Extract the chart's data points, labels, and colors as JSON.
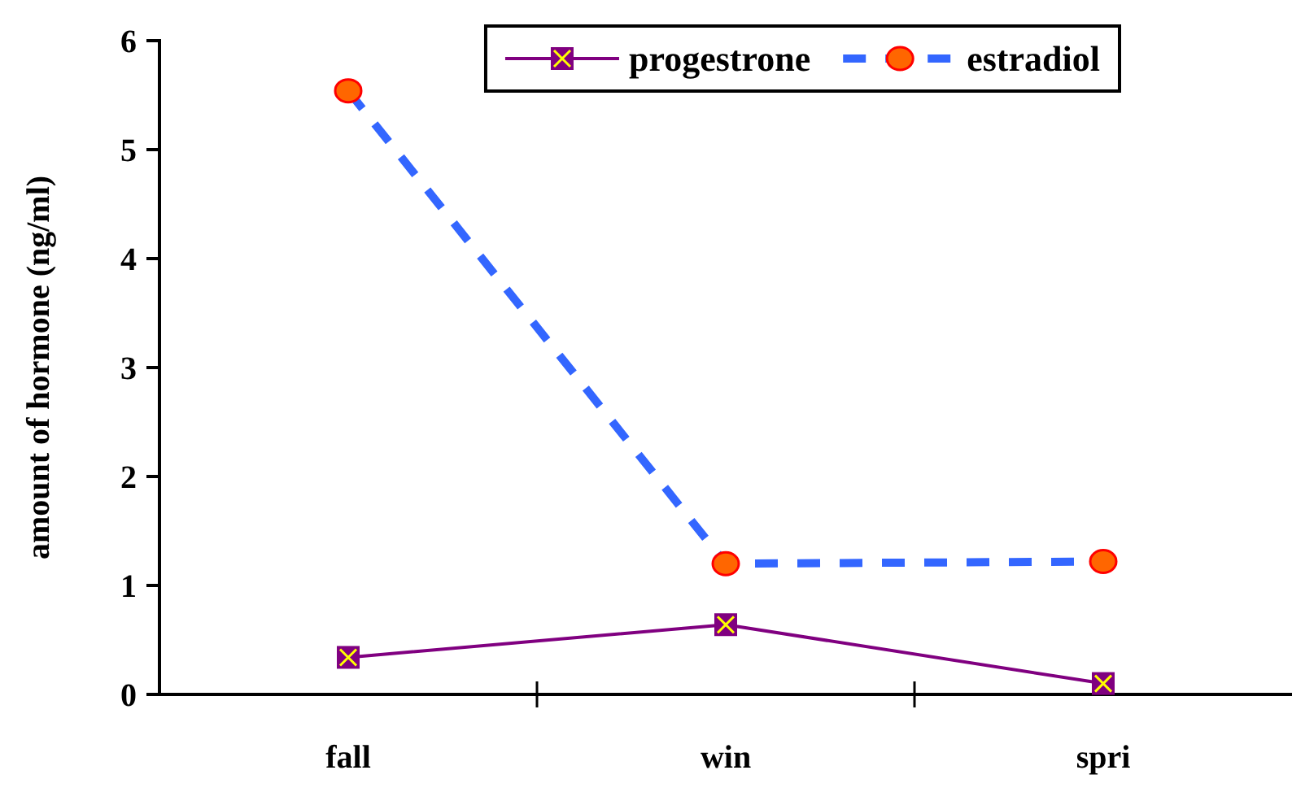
{
  "chart_data": {
    "type": "line",
    "ylabel": "amount of hormone (ng/ml)",
    "categories": [
      "fall",
      "win",
      "spri"
    ],
    "series": [
      {
        "name": "progestrone",
        "color": "#800080",
        "values": [
          0.34,
          0.64,
          0.1
        ],
        "marker": "square",
        "line_style": "solid"
      },
      {
        "name": "estradiol",
        "color": "#3366ff",
        "values": [
          5.54,
          1.2,
          1.22
        ],
        "marker": "circle",
        "line_style": "dashed"
      }
    ],
    "ylim": [
      0,
      6
    ],
    "yticks": [
      0,
      1,
      2,
      3,
      4,
      5,
      6
    ],
    "grid": false,
    "legend": "top right"
  }
}
